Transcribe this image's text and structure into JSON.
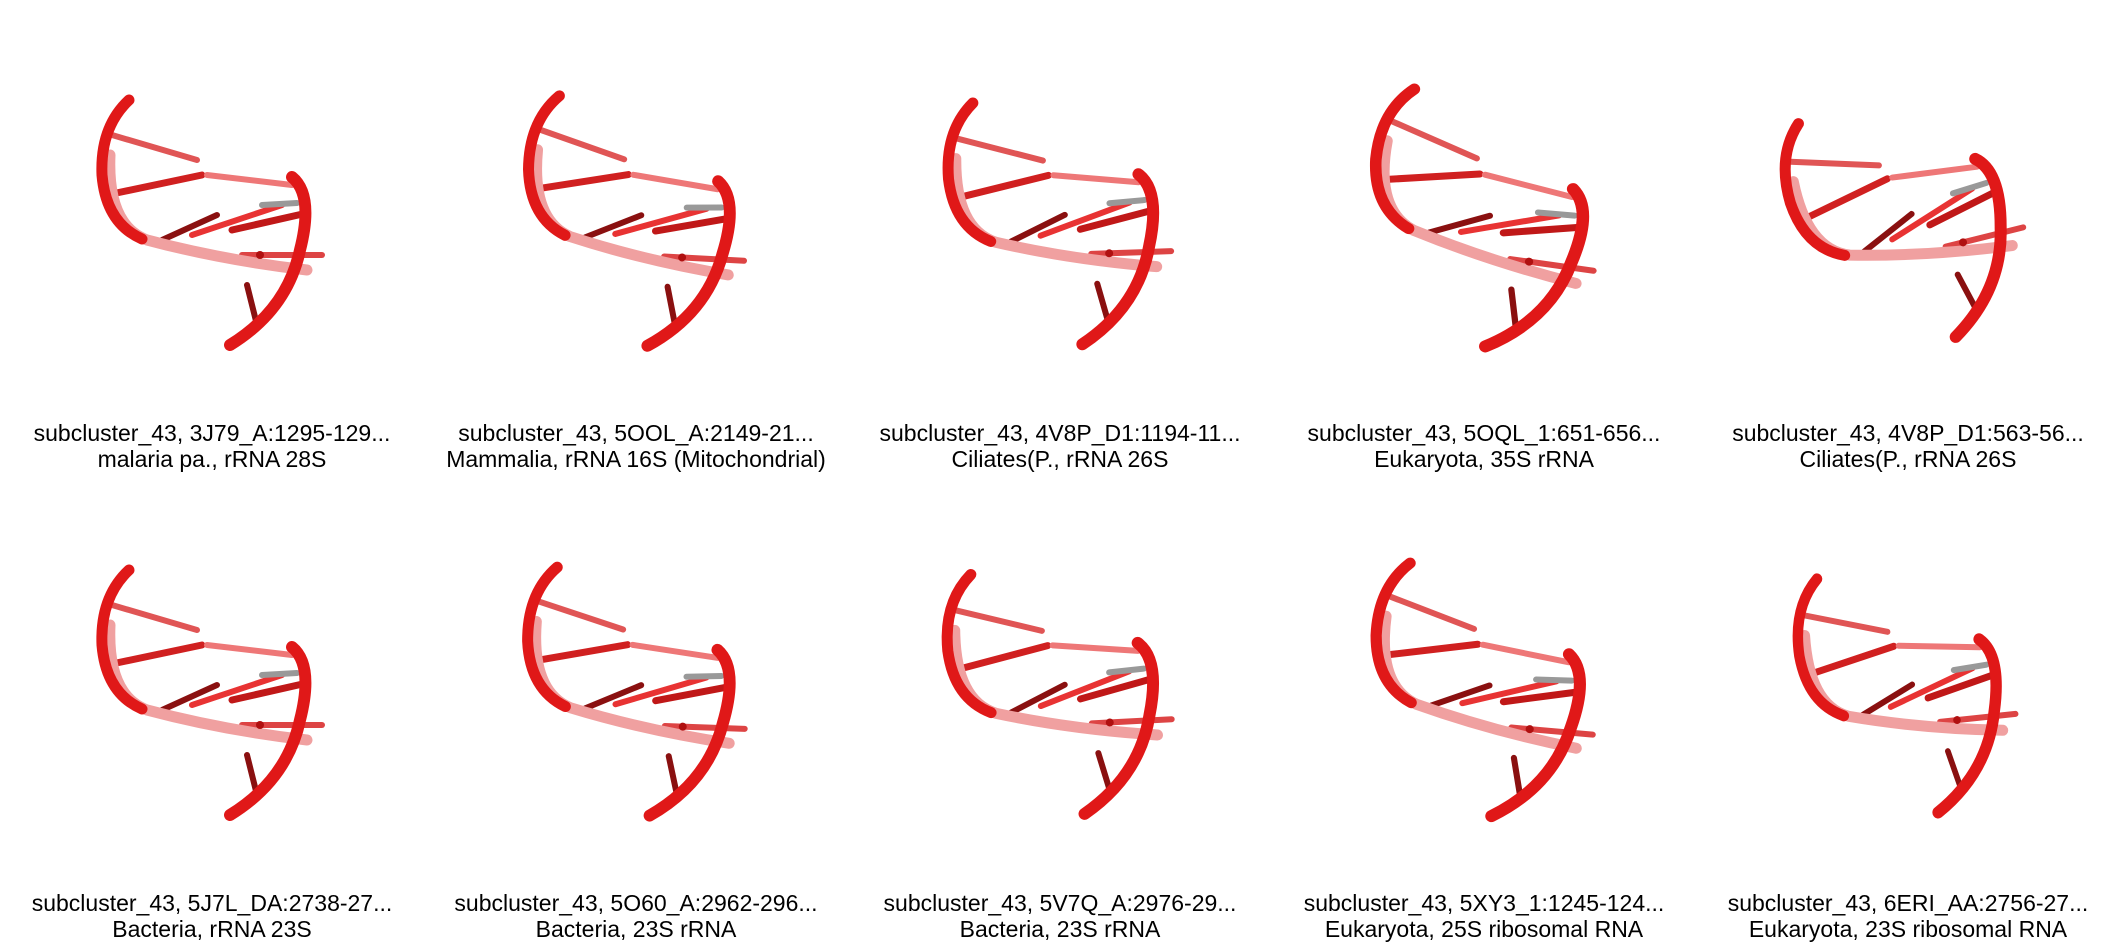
{
  "accent_color": "#e01818",
  "items": [
    {
      "title": "subcluster_43, 3J79_A:1295-129...",
      "subtitle": "malaria pa., rRNA 28S",
      "icon": "rna-structure-icon"
    },
    {
      "title": "subcluster_43, 5OOL_A:2149-21...",
      "subtitle": "Mammalia, rRNA 16S (Mitochondrial)",
      "icon": "rna-structure-icon"
    },
    {
      "title": "subcluster_43, 4V8P_D1:1194-11...",
      "subtitle": "Ciliates(P., rRNA 26S",
      "icon": "rna-structure-icon"
    },
    {
      "title": "subcluster_43, 5OQL_1:651-656...",
      "subtitle": "Eukaryota, 35S rRNA",
      "icon": "rna-structure-icon"
    },
    {
      "title": "subcluster_43, 4V8P_D1:563-56...",
      "subtitle": "Ciliates(P., rRNA 26S",
      "icon": "rna-structure-icon"
    },
    {
      "title": "subcluster_43, 5J7L_DA:2738-27...",
      "subtitle": "Bacteria, rRNA 23S",
      "icon": "rna-structure-icon"
    },
    {
      "title": "subcluster_43, 5O60_A:2962-296...",
      "subtitle": "Bacteria, 23S rRNA",
      "icon": "rna-structure-icon"
    },
    {
      "title": "subcluster_43, 5V7Q_A:2976-29...",
      "subtitle": "Bacteria, 23S rRNA",
      "icon": "rna-structure-icon"
    },
    {
      "title": "subcluster_43, 5XY3_1:1245-124...",
      "subtitle": "Eukaryota, 25S ribosomal RNA",
      "icon": "rna-structure-icon"
    },
    {
      "title": "subcluster_43, 6ERI_AA:2756-27...",
      "subtitle": "Eukaryota, 23S ribosomal RNA",
      "icon": "rna-structure-icon"
    }
  ]
}
